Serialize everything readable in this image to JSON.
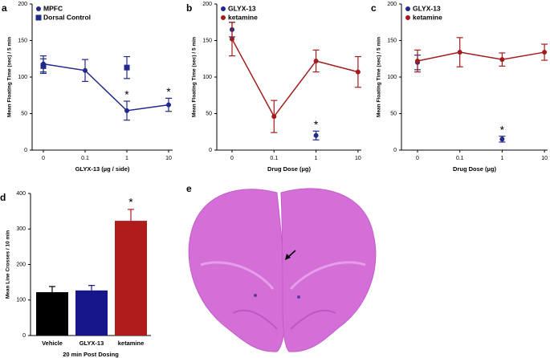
{
  "chart_data": [
    {
      "type": "errorline",
      "panel": "a",
      "ylabel": "Mean Floating Time (sec) / 5 min",
      "xlabel": "GLYX-13 (µg / side)",
      "categories": [
        "0",
        "0.1",
        "1",
        "10"
      ],
      "ylim": [
        0,
        200
      ],
      "yticks": [
        0,
        50,
        100,
        150,
        200
      ],
      "legend": "upper left",
      "series": [
        {
          "name": "MPFC",
          "color": "#1f2a8a",
          "marker": "circle",
          "line": true,
          "values": [
            118,
            109,
            54,
            62
          ],
          "errors": [
            11,
            15,
            13,
            9
          ]
        },
        {
          "name": "Dorsal Control",
          "color": "#1f2a8a",
          "marker": "square",
          "line": false,
          "values": [
            115,
            null,
            113,
            null
          ],
          "errors": [
            10,
            null,
            15,
            null
          ]
        }
      ],
      "annotations": [
        {
          "text": "*",
          "x": "1",
          "series": "MPFC"
        },
        {
          "text": "*",
          "x": "10",
          "series": "MPFC"
        }
      ]
    },
    {
      "type": "errorline",
      "panel": "b",
      "ylabel": "Mean Floating Time (sec) / 5 min",
      "xlabel": "Drug Dose (µg)",
      "categories": [
        "0",
        "0.1",
        "1",
        "10"
      ],
      "ylim": [
        0,
        200
      ],
      "yticks": [
        0,
        50,
        100,
        150,
        200
      ],
      "legend": "upper left",
      "series": [
        {
          "name": "GLYX-13",
          "color": "#1f2a8a",
          "marker": "circle",
          "line": false,
          "values": [
            165,
            null,
            20,
            null
          ],
          "errors": [
            10,
            null,
            6,
            null
          ]
        },
        {
          "name": "ketamine",
          "color": "#a31c1c",
          "marker": "circle",
          "line": true,
          "values": [
            152,
            46,
            122,
            107
          ],
          "errors": [
            23,
            22,
            15,
            21
          ]
        }
      ],
      "annotations": [
        {
          "text": "*",
          "x": "1",
          "series": "GLYX-13"
        }
      ]
    },
    {
      "type": "errorline",
      "panel": "c",
      "ylabel": "Mean Floating Time (sec) / 5 min",
      "xlabel": "Drug Dose (µg)",
      "categories": [
        "0",
        "0.1",
        "1",
        "10"
      ],
      "ylim": [
        0,
        200
      ],
      "yticks": [
        0,
        50,
        100,
        150,
        200
      ],
      "legend": "upper left",
      "series": [
        {
          "name": "GLYX-13",
          "color": "#1f2a8a",
          "marker": "circle",
          "line": false,
          "values": [
            120,
            null,
            15,
            null
          ],
          "errors": [
            10,
            null,
            4,
            null
          ]
        },
        {
          "name": "ketamine",
          "color": "#a31c1c",
          "marker": "circle",
          "line": true,
          "values": [
            122,
            134,
            124,
            134
          ],
          "errors": [
            15,
            20,
            9,
            11
          ]
        }
      ],
      "annotations": [
        {
          "text": "*",
          "x": "1",
          "series": "GLYX-13"
        }
      ]
    },
    {
      "type": "bar",
      "panel": "d",
      "ylabel": "Mean Line Crosses / 10 min",
      "xlabel": "20 min Post Dosing",
      "categories": [
        "Vehicle",
        "GLYX-13",
        "ketamine"
      ],
      "colors": [
        "#000000",
        "#16168a",
        "#b01c1c"
      ],
      "values": [
        122,
        127,
        323
      ],
      "errors": [
        16,
        14,
        32
      ],
      "ylim": [
        0,
        400
      ],
      "yticks": [
        0,
        100,
        200,
        300,
        400
      ],
      "annotations": [
        {
          "text": "*",
          "x": "ketamine"
        }
      ]
    }
  ],
  "image_panel": {
    "panel": "e"
  }
}
